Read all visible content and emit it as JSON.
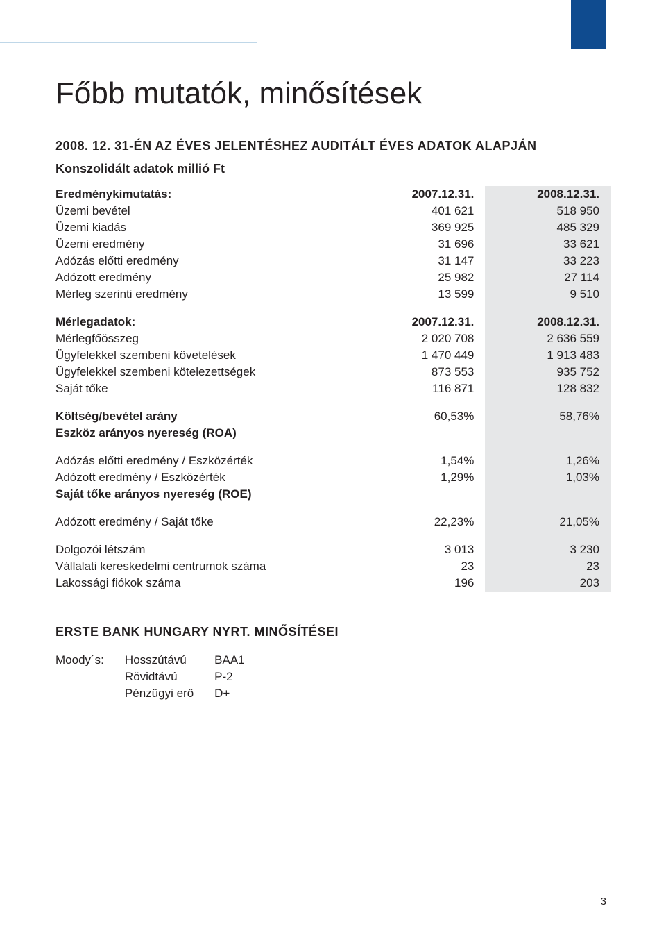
{
  "colors": {
    "accent_block": "#0f4b8f",
    "header_rule": "#bfd7e8",
    "highlight_column_bg": "#e6e7e8",
    "text": "#231f20",
    "background": "#ffffff"
  },
  "title": "Főbb mutatók, minősítések",
  "subhead": "2008. 12. 31-ÉN AZ ÉVES JELENTÉSHEZ AUDITÁLT ÉVES ADATOK ALAPJÁN",
  "caption": "Konszolidált adatok millió Ft",
  "sections": {
    "income": {
      "header_label": "Eredménykimutatás:",
      "col_a_header": "2007.12.31.",
      "col_b_header": "2008.12.31.",
      "rows": [
        {
          "label": "Üzemi bevétel",
          "a": "401 621",
          "b": "518 950"
        },
        {
          "label": "Üzemi kiadás",
          "a": "369 925",
          "b": "485 329"
        },
        {
          "label": "Üzemi eredmény",
          "a": "31 696",
          "b": "33 621"
        },
        {
          "label": "Adózás előtti eredmény",
          "a": "31 147",
          "b": "33 223"
        },
        {
          "label": "Adózott eredmény",
          "a": "25 982",
          "b": "27 114"
        },
        {
          "label": "Mérleg szerinti eredmény",
          "a": "13 599",
          "b": "9 510"
        }
      ]
    },
    "balance": {
      "header_label": "Mérlegadatok:",
      "col_a_header": "2007.12.31.",
      "col_b_header": "2008.12.31.",
      "rows": [
        {
          "label": "Mérlegfőösszeg",
          "a": "2 020 708",
          "b": "2 636 559"
        },
        {
          "label": "Ügyfelekkel szembeni követelések",
          "a": "1 470 449",
          "b": "1 913 483"
        },
        {
          "label": "Ügyfelekkel szembeni kötelezettségek",
          "a": "873 553",
          "b": "935 752"
        },
        {
          "label": "Saját tőke",
          "a": "116 871",
          "b": "128 832"
        }
      ]
    },
    "ratios": {
      "cost_income": {
        "label": "Költség/bevétel arány",
        "a": "60,53%",
        "b": "58,76%"
      },
      "roa_header": "Eszköz arányos nyereség (ROA)",
      "roa_rows": [
        {
          "label": "Adózás előtti eredmény / Eszközérték",
          "a": "1,54%",
          "b": "1,26%"
        },
        {
          "label": "Adózott eredmény / Eszközérték",
          "a": "1,29%",
          "b": "1,03%"
        }
      ],
      "roe_header": "Saját tőke arányos nyereség (ROE)",
      "roe_row": {
        "label": "Adózott eredmény / Saját tőke",
        "a": "22,23%",
        "b": "21,05%"
      },
      "misc": [
        {
          "label": "Dolgozói létszám",
          "a": "3 013",
          "b": "3 230"
        },
        {
          "label": "Vállalati kereskedelmi centrumok száma",
          "a": "23",
          "b": "23"
        },
        {
          "label": "Lakossági fiókok száma",
          "a": "196",
          "b": "203"
        }
      ]
    }
  },
  "ratings": {
    "title": "ERSTE BANK HUNGARY NYRT. MINŐSÍTÉSEI",
    "agency": "Moody´s:",
    "rows": [
      {
        "label": "Hosszútávú",
        "value": "BAA1"
      },
      {
        "label": "Rövidtávú",
        "value": "P-2"
      },
      {
        "label": "Pénzügyi erő",
        "value": "D+"
      }
    ]
  },
  "page_number": "3"
}
